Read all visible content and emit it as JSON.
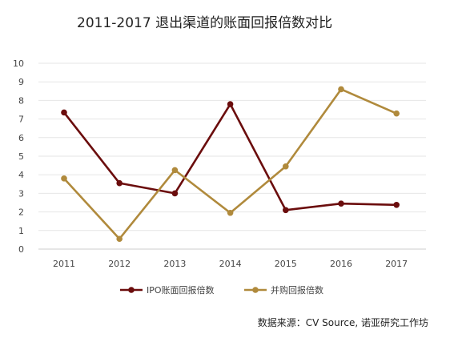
{
  "chart_data": {
    "type": "line",
    "title": "2011-2017 退出渠道的账面回报倍数对比",
    "xlabel": "",
    "ylabel": "",
    "x": [
      "2011",
      "2012",
      "2013",
      "2014",
      "2015",
      "2016",
      "2017"
    ],
    "y_ticks": [
      "0",
      "1",
      "2",
      "3",
      "4",
      "5",
      "6",
      "7",
      "8",
      "9",
      "10"
    ],
    "ylim": [
      0,
      10
    ],
    "grid": true,
    "legend_position": "bottom",
    "series": [
      {
        "name": "IPO账面回报倍数",
        "color": "#6b0d0d",
        "values": [
          7.35,
          3.55,
          3.0,
          7.8,
          2.1,
          2.45,
          2.38
        ]
      },
      {
        "name": "并购回报倍数",
        "color": "#b08a3c",
        "values": [
          3.8,
          0.55,
          4.25,
          1.95,
          4.45,
          8.6,
          7.3
        ]
      }
    ],
    "source": "数据来源：CV Source, 诺亚研究工作坊"
  }
}
